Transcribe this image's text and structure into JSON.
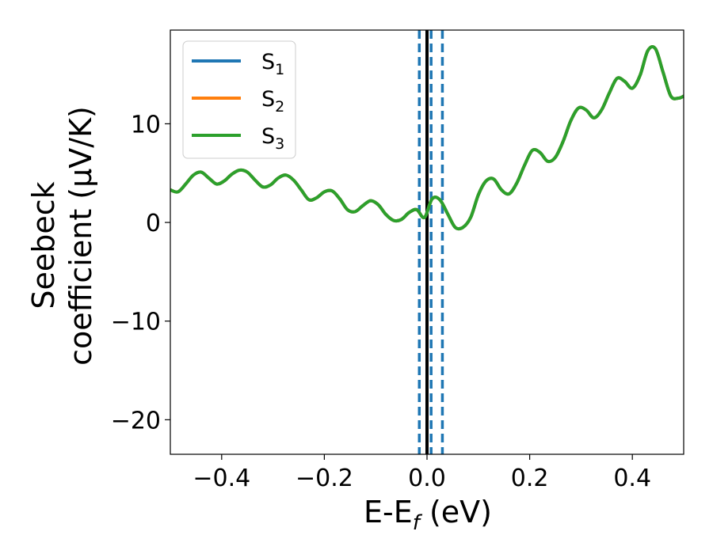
{
  "chart_data": {
    "type": "line",
    "xlabel": {
      "main": "E-E",
      "sub": "f",
      "unit": " (eV)"
    },
    "ylabel": {
      "line1": "Seebeck",
      "line2": "coefficient  (μV/K)"
    },
    "xlim": [
      -0.5,
      0.5
    ],
    "ylim": [
      -23.5,
      19.5
    ],
    "x_ticks": [
      -0.4,
      -0.2,
      0.0,
      0.2,
      0.4
    ],
    "x_tick_labels": [
      "−0.4",
      "−0.2",
      "0.0",
      "0.2",
      "0.4"
    ],
    "y_ticks": [
      -20,
      -10,
      0,
      10
    ],
    "y_tick_labels": [
      "−20",
      "−10",
      "0",
      "10"
    ],
    "grid": false,
    "legend_position": "top-left",
    "colors": {
      "s1": "#1f77b4",
      "s2": "#ff7f0e",
      "s3": "#2ca02c",
      "fermi": "#000000",
      "marker": "#1f77b4"
    },
    "series": [
      {
        "name": "S",
        "sub": "1",
        "color": "#1f77b4",
        "x": [
          -0.5,
          -0.485,
          -0.47,
          -0.455,
          -0.44,
          -0.425,
          -0.41,
          -0.395,
          -0.38,
          -0.365,
          -0.35,
          -0.335,
          -0.32,
          -0.305,
          -0.29,
          -0.275,
          -0.26,
          -0.245,
          -0.23,
          -0.215,
          -0.2,
          -0.185,
          -0.17,
          -0.155,
          -0.14,
          -0.125,
          -0.11,
          -0.095,
          -0.08,
          -0.065,
          -0.05,
          -0.035,
          -0.02,
          -0.005,
          0.01,
          0.025,
          0.04,
          0.055,
          0.07,
          0.085,
          0.1,
          0.115,
          0.13,
          0.145,
          0.16,
          0.175,
          0.19,
          0.205,
          0.22,
          0.235,
          0.25,
          0.265,
          0.28,
          0.295,
          0.31,
          0.325,
          0.34,
          0.355,
          0.37,
          0.385,
          0.4,
          0.415,
          0.43,
          0.445,
          0.46,
          0.475,
          0.49,
          0.5
        ],
        "y": [
          3.3,
          3.1,
          3.9,
          4.8,
          5.1,
          4.5,
          3.9,
          4.2,
          4.9,
          5.3,
          5.1,
          4.3,
          3.6,
          3.8,
          4.5,
          4.8,
          4.3,
          3.3,
          2.3,
          2.5,
          3.1,
          3.2,
          2.4,
          1.3,
          1.1,
          1.7,
          2.2,
          1.8,
          0.8,
          0.2,
          0.3,
          1.0,
          1.3,
          0.5,
          2.4,
          2.3,
          0.9,
          -0.5,
          -0.5,
          0.5,
          2.8,
          4.2,
          4.4,
          3.3,
          2.9,
          4.0,
          5.8,
          7.3,
          7.1,
          6.2,
          6.6,
          8.2,
          10.3,
          11.6,
          11.4,
          10.6,
          11.4,
          13.1,
          14.6,
          14.3,
          13.6,
          14.9,
          17.4,
          17.6,
          15.2,
          12.8,
          12.6,
          12.8
        ]
      },
      {
        "name": "S",
        "sub": "2",
        "color": "#ff7f0e",
        "x": [
          -0.5,
          -0.485,
          -0.47,
          -0.455,
          -0.44,
          -0.425,
          -0.41,
          -0.395,
          -0.38,
          -0.365,
          -0.35,
          -0.335,
          -0.32,
          -0.305,
          -0.29,
          -0.275,
          -0.26,
          -0.245,
          -0.23,
          -0.215,
          -0.2,
          -0.185,
          -0.17,
          -0.155,
          -0.14,
          -0.125,
          -0.11,
          -0.095,
          -0.08,
          -0.065,
          -0.05,
          -0.035,
          -0.02,
          -0.005,
          0.01,
          0.025,
          0.04,
          0.055,
          0.07,
          0.085,
          0.1,
          0.115,
          0.13,
          0.145,
          0.16,
          0.175,
          0.19,
          0.205,
          0.22,
          0.235,
          0.25,
          0.265,
          0.28,
          0.295,
          0.31,
          0.325,
          0.34,
          0.355,
          0.37,
          0.385,
          0.4,
          0.415,
          0.43,
          0.445,
          0.46,
          0.475,
          0.49,
          0.5
        ],
        "y": [
          3.3,
          3.1,
          3.9,
          4.8,
          5.1,
          4.5,
          3.9,
          4.2,
          4.9,
          5.3,
          5.1,
          4.3,
          3.6,
          3.8,
          4.5,
          4.8,
          4.3,
          3.3,
          2.3,
          2.5,
          3.1,
          3.2,
          2.4,
          1.3,
          1.1,
          1.7,
          2.2,
          1.8,
          0.8,
          0.2,
          0.3,
          1.0,
          1.3,
          0.5,
          2.4,
          2.3,
          0.9,
          -0.5,
          -0.5,
          0.5,
          2.8,
          4.2,
          4.4,
          3.3,
          2.9,
          4.0,
          5.8,
          7.3,
          7.1,
          6.2,
          6.6,
          8.2,
          10.3,
          11.6,
          11.4,
          10.6,
          11.4,
          13.1,
          14.6,
          14.3,
          13.6,
          14.9,
          17.4,
          17.6,
          15.2,
          12.8,
          12.6,
          12.8
        ]
      },
      {
        "name": "S",
        "sub": "3",
        "color": "#2ca02c",
        "x": [
          -0.5,
          -0.485,
          -0.47,
          -0.455,
          -0.44,
          -0.425,
          -0.41,
          -0.395,
          -0.38,
          -0.365,
          -0.35,
          -0.335,
          -0.32,
          -0.305,
          -0.29,
          -0.275,
          -0.26,
          -0.245,
          -0.23,
          -0.215,
          -0.2,
          -0.185,
          -0.17,
          -0.155,
          -0.14,
          -0.125,
          -0.11,
          -0.095,
          -0.08,
          -0.065,
          -0.05,
          -0.035,
          -0.02,
          -0.005,
          0.01,
          0.025,
          0.04,
          0.055,
          0.07,
          0.085,
          0.1,
          0.115,
          0.13,
          0.145,
          0.16,
          0.175,
          0.19,
          0.205,
          0.22,
          0.235,
          0.25,
          0.265,
          0.28,
          0.295,
          0.31,
          0.325,
          0.34,
          0.355,
          0.37,
          0.385,
          0.4,
          0.415,
          0.43,
          0.445,
          0.46,
          0.475,
          0.49,
          0.5
        ],
        "y": [
          3.3,
          3.1,
          3.9,
          4.8,
          5.1,
          4.5,
          3.9,
          4.2,
          4.9,
          5.3,
          5.1,
          4.3,
          3.6,
          3.8,
          4.5,
          4.8,
          4.3,
          3.3,
          2.3,
          2.5,
          3.1,
          3.2,
          2.4,
          1.3,
          1.1,
          1.7,
          2.2,
          1.8,
          0.8,
          0.2,
          0.3,
          1.0,
          1.3,
          0.5,
          2.4,
          2.3,
          0.9,
          -0.5,
          -0.5,
          0.5,
          2.8,
          4.2,
          4.4,
          3.3,
          2.9,
          4.0,
          5.8,
          7.3,
          7.1,
          6.2,
          6.6,
          8.2,
          10.3,
          11.6,
          11.4,
          10.6,
          11.4,
          13.1,
          14.6,
          14.3,
          13.6,
          14.9,
          17.4,
          17.6,
          15.2,
          12.8,
          12.6,
          12.8
        ]
      }
    ],
    "vertical_lines": [
      {
        "x": 0.0,
        "style": "solid",
        "color": "#000000"
      },
      {
        "x": -0.015,
        "style": "dashed",
        "color": "#1f77b4"
      },
      {
        "x": 0.008,
        "style": "dashed",
        "color": "#1f77b4"
      },
      {
        "x": 0.03,
        "style": "dashed",
        "color": "#1f77b4"
      }
    ]
  }
}
